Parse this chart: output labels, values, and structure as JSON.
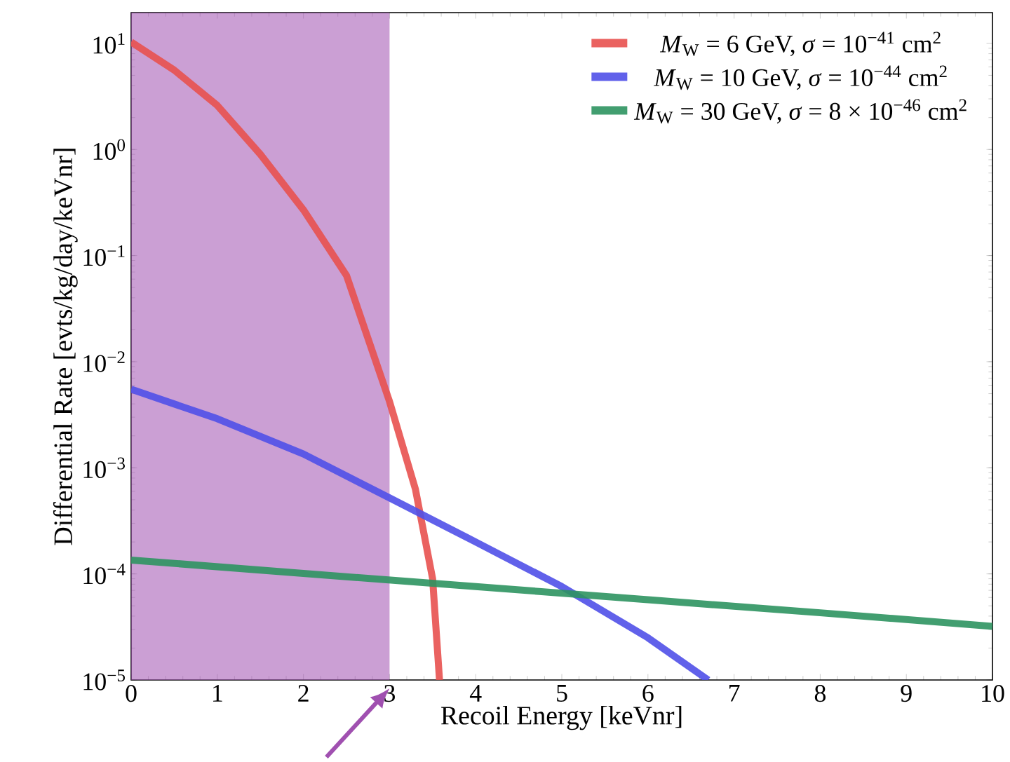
{
  "chart_data": {
    "type": "line",
    "xlabel": "Recoil Energy [keVnr]",
    "ylabel": "Differential Rate [evts/kg/day/keVnr]",
    "log": "y",
    "xlim": [
      0,
      10
    ],
    "ylim": [
      1e-05,
      19.5
    ],
    "xticks": [
      0,
      1,
      2,
      3,
      4,
      5,
      6,
      7,
      8,
      9,
      10
    ],
    "yticks": [
      {
        "value": 1e-05,
        "label": "10$^{−5}$"
      },
      {
        "value": 0.0001,
        "label": "10$^{−4}$"
      },
      {
        "value": 0.001,
        "label": "10$^{−3}$"
      },
      {
        "value": 0.01,
        "label": "10$^{−2}$"
      },
      {
        "value": 0.1,
        "label": "10$^{−1}$"
      },
      {
        "value": 1,
        "label": "10$^{0}$"
      },
      {
        "value": 10,
        "label": "10$^{1}$"
      }
    ],
    "legend": "top right",
    "grid": false,
    "bands": [
      {
        "axis": "x",
        "from": 0,
        "to": 3,
        "color": "#a050b0"
      }
    ],
    "series": [
      {
        "name": "*M*$_{W}$ = 6 GeV,   *σ* = 10$^{−41}$ cm$^{2}$",
        "color": "#e8514f",
        "x": [
          0,
          0.5,
          1,
          1.5,
          2,
          2.5,
          3,
          3.3,
          3.5,
          3.58
        ],
        "values": [
          10.3,
          5.6,
          2.6,
          0.9,
          0.27,
          0.065,
          0.0042,
          0.00063,
          9e-05,
          1e-05
        ]
      },
      {
        "name": "*M*$_{W}$ = 10 GeV, *σ* = 10$^{−44}$ cm$^{2}$",
        "color": "#5050e8",
        "x": [
          0,
          1,
          2,
          3,
          4,
          5,
          6,
          6.7
        ],
        "values": [
          0.0055,
          0.0029,
          0.00135,
          0.00052,
          0.0002,
          7.6e-05,
          2.5e-05,
          1e-05
        ]
      },
      {
        "name": "*M*$_{W}$ = 30 GeV, *σ* = 8 × 10$^{−46}$ cm$^{2}$",
        "color": "#2e9460",
        "x": [
          0,
          2,
          4,
          6,
          8,
          10
        ],
        "values": [
          0.000135,
          0.000101,
          7.6e-05,
          5.7e-05,
          4.3e-05,
          3.2e-05
        ]
      }
    ]
  }
}
